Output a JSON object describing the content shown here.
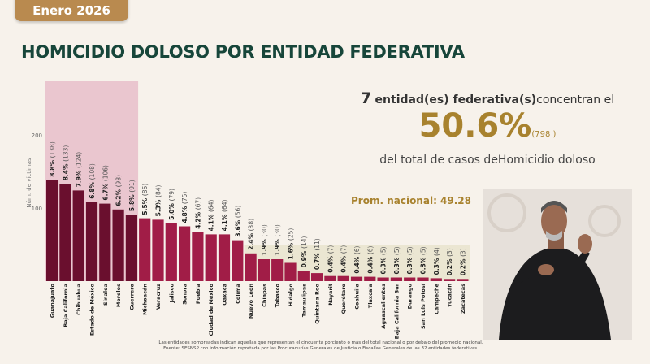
{
  "header": {
    "period_badge": "Enero 2026",
    "title": "HOMICIDIO DOLOSO POR ENTIDAD FEDERATIVA"
  },
  "summary": {
    "count": "7",
    "line1_bold": "entidad(es) federativa(s)",
    "line1_rest": "concentran el",
    "percent": "50.6%",
    "cases": "(798 )",
    "line3": "del total de casos deHomicidio doloso"
  },
  "average_label": "Prom. nacional: 49.28",
  "footnote": {
    "line1": "Las entidades sombreadas indican aquellas que representan el cincuenta porciento o más del total nacional o por debajo del promedio nacional.",
    "line2": "Fuente: SESNSP con información reportada por las Procuradurías Generales de Justicia o Fiscalías Generales de las 32 entidades federativas."
  },
  "colors": {
    "top_bars": "#6a0f2e",
    "other_bars": "#a11d47",
    "top_shade": "#eac6cf",
    "below_avg_shade": "#ebe6d2",
    "title": "#17463a",
    "accent": "#a8822e"
  },
  "video": {
    "icon": "sign-language-interpreter"
  },
  "chart_data": {
    "type": "bar",
    "ylabel": "Núm. de víctimas",
    "yticks": [
      100,
      200
    ],
    "ylim": [
      0,
      200
    ],
    "average": 49.28,
    "top_count": 7,
    "categories": [
      "Guanajuato",
      "Baja California",
      "Chihuahua",
      "Estado de México",
      "Sinaloa",
      "Morelos",
      "Guerrero",
      "Michoacán",
      "Veracruz",
      "Jalisco",
      "Sonora",
      "Puebla",
      "Ciudad de México",
      "Oaxaca",
      "Colima",
      "Nuevo León",
      "Chiapas",
      "Tabasco",
      "Hidalgo",
      "Tamaulipas",
      "Quintana Roo",
      "Nayarit",
      "Querétaro",
      "Coahuila",
      "Tlaxcala",
      "Aguascalientes",
      "Baja California Sur",
      "Durango",
      "San Luis Potosí",
      "Campeche",
      "Yucatán",
      "Zacatecas"
    ],
    "values": [
      138,
      133,
      124,
      108,
      106,
      98,
      91,
      86,
      84,
      79,
      75,
      67,
      64,
      64,
      56,
      38,
      30,
      30,
      25,
      14,
      11,
      7,
      7,
      6,
      6,
      5,
      5,
      5,
      5,
      4,
      3,
      3
    ],
    "percent_labels": [
      "8.8%",
      "8.4%",
      "7.9%",
      "6.8%",
      "6.7%",
      "6.2%",
      "5.8%",
      "5.5%",
      "5.3%",
      "5.0%",
      "4.8%",
      "4.2%",
      "4.1%",
      "4.1%",
      "3.6%",
      "2.4%",
      "1.9%",
      "1.9%",
      "1.6%",
      "0.9%",
      "0.7%",
      "0.4%",
      "0.4%",
      "0.4%",
      "0.4%",
      "0.3%",
      "0.3%",
      "0.3%",
      "0.3%",
      "0.3%",
      "0.2%",
      "0.2%"
    ]
  }
}
